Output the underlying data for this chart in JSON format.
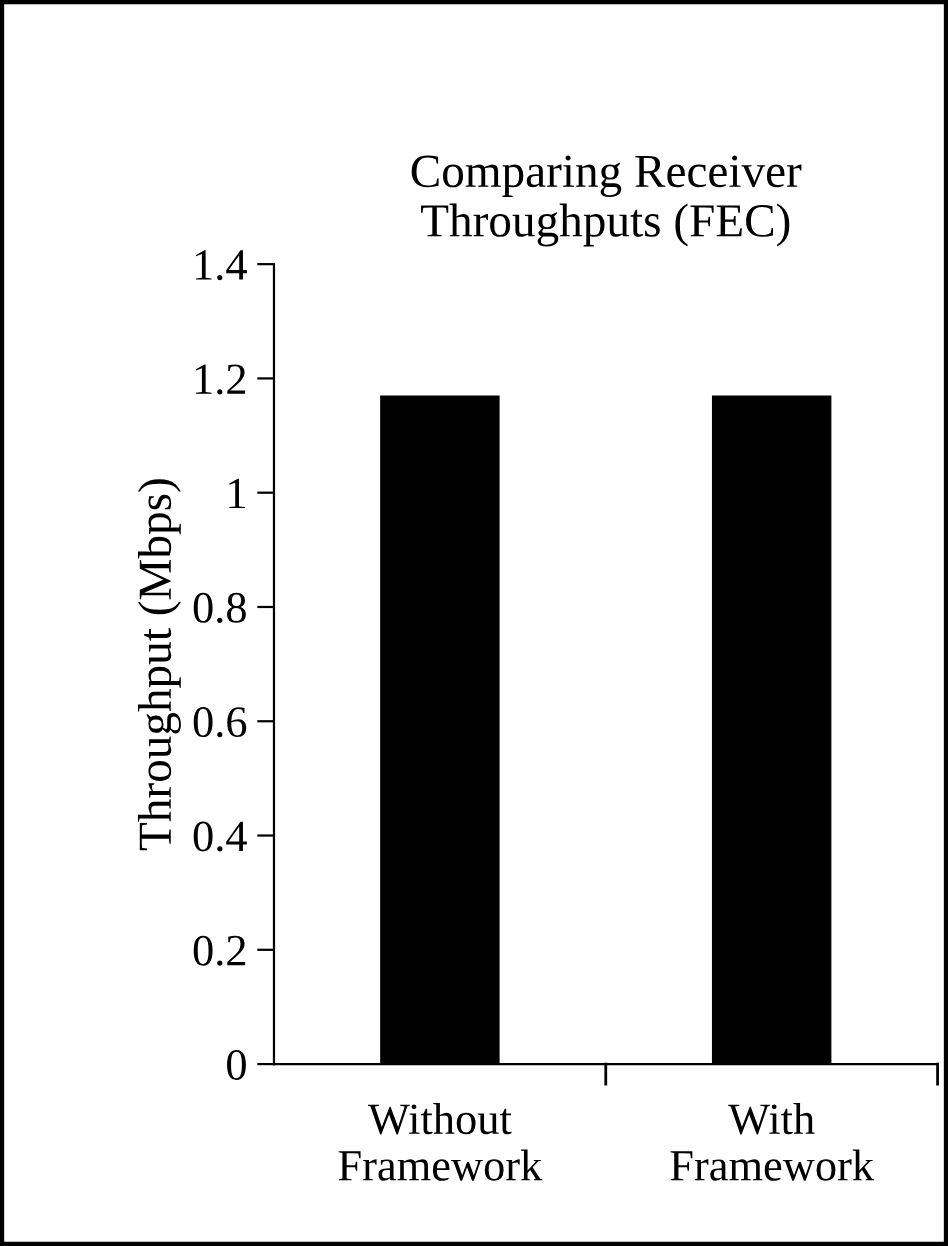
{
  "chart_data": {
    "type": "bar",
    "title": "Comparing Receiver\nThroughputs (FEC)",
    "ylabel": "Throughput (Mbps)",
    "categories": [
      "Without\nFramework",
      "With\nFramework"
    ],
    "values": [
      1.17,
      1.17
    ],
    "color": "#000000",
    "ylim": [
      0,
      1.4
    ],
    "yticks": [
      0,
      0.2,
      0.4,
      0.6,
      0.8,
      1,
      1.2,
      1.4
    ],
    "grid": false,
    "legend": false
  }
}
